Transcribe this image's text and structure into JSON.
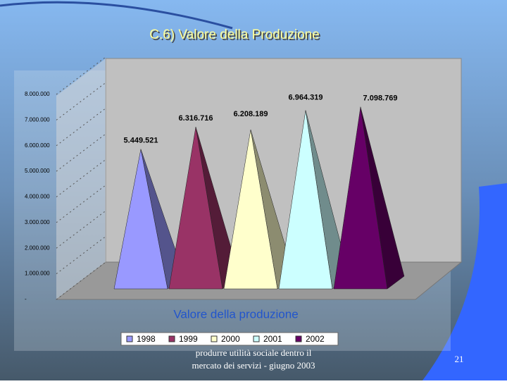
{
  "slide": {
    "title": "C.6) Valore della Produzione",
    "footer": [
      "produrre utilità sociale dentro il",
      "mercato dei servizi - giugno 2003"
    ],
    "page_number": "21"
  },
  "chart_data": {
    "type": "pyramid",
    "title": "Valore della produzione",
    "categories": [
      "1998",
      "1999",
      "2000",
      "2001",
      "2002"
    ],
    "values": [
      5449521,
      6316716,
      6208189,
      6964319,
      7098769
    ],
    "value_labels": [
      "5.449.521",
      "6.316.716",
      "6.208.189",
      "6.964.319",
      "7.098.769"
    ],
    "colors": [
      "#9999ff",
      "#993366",
      "#ffffcc",
      "#ccffff",
      "#660066"
    ],
    "ylim": [
      0,
      8000000
    ],
    "yticks": [
      {
        "value": 0,
        "label": "-"
      },
      {
        "value": 1000000,
        "label": "1.000.000"
      },
      {
        "value": 2000000,
        "label": "2.000.000"
      },
      {
        "value": 3000000,
        "label": "3.000.000"
      },
      {
        "value": 4000000,
        "label": "4.000.000"
      },
      {
        "value": 5000000,
        "label": "5.000.000"
      },
      {
        "value": 6000000,
        "label": "6.000.000"
      },
      {
        "value": 7000000,
        "label": "7.000.000"
      },
      {
        "value": 8000000,
        "label": "8.000.000"
      }
    ],
    "grid": true
  }
}
